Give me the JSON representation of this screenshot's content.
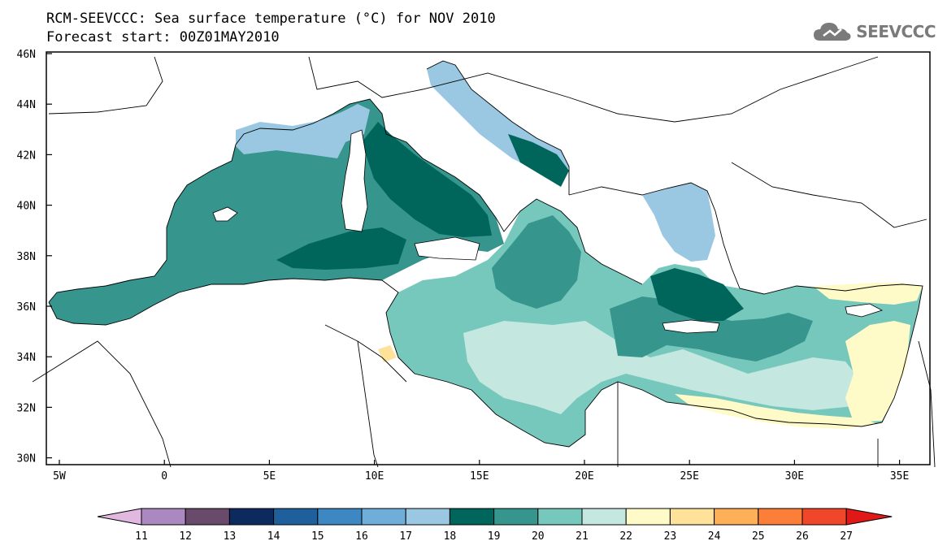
{
  "title": {
    "line1": "RCM-SEEVCCC: Sea surface temperature (°C) for NOV 2010",
    "line2": "Forecast start: 00Z01MAY2010"
  },
  "logo": {
    "text": "SEEVCCC",
    "icon": "cloud-icon"
  },
  "map": {
    "lat_labels": [
      "46N",
      "44N",
      "42N",
      "40N",
      "38N",
      "36N",
      "34N",
      "32N",
      "30N"
    ],
    "lon_labels": [
      "5W",
      "0",
      "5E",
      "10E",
      "15E",
      "20E",
      "25E",
      "30E",
      "35E"
    ],
    "colors": {
      "sst_18": "#9ac8e2",
      "sst_19": "#00655a",
      "sst_20": "#36958c",
      "sst_21": "#76c8bc",
      "sst_22": "#c4e8e0",
      "sst_23": "#fffbc8",
      "land": "#ffffff",
      "border": "#000000"
    }
  },
  "colorbar": {
    "ticks": [
      "11",
      "12",
      "13",
      "14",
      "15",
      "16",
      "17",
      "18",
      "19",
      "20",
      "21",
      "22",
      "23",
      "24",
      "25",
      "26",
      "27"
    ],
    "colors": [
      "#e0b8e0",
      "#a989bf",
      "#684a6a",
      "#0c2a5e",
      "#1f5f9c",
      "#3d87c2",
      "#6eaed8",
      "#9ac8e2",
      "#00655a",
      "#36958c",
      "#76c8bc",
      "#c4e8e0",
      "#fffbc8",
      "#fee29a",
      "#fdb058",
      "#fb7f38",
      "#f0462a",
      "#e01818"
    ]
  }
}
